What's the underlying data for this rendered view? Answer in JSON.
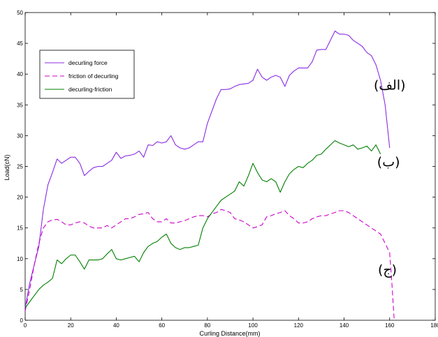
{
  "chart_data": {
    "type": "line",
    "xlabel": "Curling Distance(mm)",
    "ylabel": "Load(cN)",
    "xlim": [
      0,
      180
    ],
    "ylim": [
      0,
      50
    ],
    "xticks": [
      "0",
      "20",
      "40",
      "60",
      "80",
      "100",
      "120",
      "140",
      "160",
      "180"
    ],
    "yticks": [
      "0",
      "5",
      "10",
      "15",
      "20",
      "25",
      "30",
      "35",
      "40",
      "45",
      "50"
    ],
    "grid": false,
    "legend": "top-left",
    "series": [
      {
        "name": "decurling force",
        "color": "#8a2be2",
        "dash": "solid",
        "points": [
          [
            0,
            2
          ],
          [
            2,
            6
          ],
          [
            4,
            9
          ],
          [
            6,
            12
          ],
          [
            8,
            18
          ],
          [
            10,
            22
          ],
          [
            12,
            24
          ],
          [
            14,
            26.2
          ],
          [
            16,
            25.5
          ],
          [
            18,
            26
          ],
          [
            20,
            26.5
          ],
          [
            22,
            26.5
          ],
          [
            24,
            25.5
          ],
          [
            26,
            23.5
          ],
          [
            28,
            24.2
          ],
          [
            30,
            24.8
          ],
          [
            32,
            25
          ],
          [
            34,
            25
          ],
          [
            36,
            25.5
          ],
          [
            38,
            26
          ],
          [
            40,
            27.3
          ],
          [
            42,
            26.3
          ],
          [
            44,
            26.7
          ],
          [
            46,
            26.8
          ],
          [
            48,
            27
          ],
          [
            50,
            27.5
          ],
          [
            52,
            26.5
          ],
          [
            54,
            28.5
          ],
          [
            56,
            28.4
          ],
          [
            58,
            29
          ],
          [
            60,
            28.8
          ],
          [
            62,
            29
          ],
          [
            64,
            30
          ],
          [
            66,
            28.5
          ],
          [
            68,
            28
          ],
          [
            70,
            27.8
          ],
          [
            72,
            28
          ],
          [
            74,
            28.5
          ],
          [
            76,
            29
          ],
          [
            78,
            29
          ],
          [
            80,
            32
          ],
          [
            82,
            34
          ],
          [
            84,
            36
          ],
          [
            86,
            37.5
          ],
          [
            88,
            37.5
          ],
          [
            90,
            37.6
          ],
          [
            92,
            38
          ],
          [
            94,
            38.3
          ],
          [
            96,
            38.4
          ],
          [
            98,
            38.5
          ],
          [
            100,
            39
          ],
          [
            102,
            40.8
          ],
          [
            104,
            39.5
          ],
          [
            106,
            39
          ],
          [
            108,
            39.5
          ],
          [
            110,
            39.8
          ],
          [
            112,
            39.5
          ],
          [
            114,
            38
          ],
          [
            116,
            39.8
          ],
          [
            118,
            40.5
          ],
          [
            120,
            41
          ],
          [
            122,
            41
          ],
          [
            124,
            41
          ],
          [
            126,
            42
          ],
          [
            128,
            43.9
          ],
          [
            130,
            44
          ],
          [
            132,
            44
          ],
          [
            134,
            45.5
          ],
          [
            136,
            47
          ],
          [
            138,
            46.5
          ],
          [
            140,
            46.5
          ],
          [
            142,
            46.3
          ],
          [
            144,
            45.5
          ],
          [
            146,
            45
          ],
          [
            148,
            44.5
          ],
          [
            150,
            43.5
          ],
          [
            152,
            43
          ],
          [
            154,
            41.5
          ],
          [
            156,
            39
          ],
          [
            158,
            35
          ],
          [
            160,
            28
          ]
        ]
      },
      {
        "name": "friction of decurling",
        "color": "#cc00cc",
        "dash": "dashed",
        "points": [
          [
            0,
            1.5
          ],
          [
            2,
            5
          ],
          [
            4,
            9
          ],
          [
            6,
            12.5
          ],
          [
            8,
            15
          ],
          [
            10,
            16
          ],
          [
            12,
            16.3
          ],
          [
            14,
            16.4
          ],
          [
            16,
            16
          ],
          [
            18,
            15.5
          ],
          [
            20,
            15.5
          ],
          [
            22,
            15.8
          ],
          [
            24,
            16
          ],
          [
            26,
            15.8
          ],
          [
            28,
            15.3
          ],
          [
            30,
            15
          ],
          [
            32,
            15
          ],
          [
            34,
            15
          ],
          [
            36,
            15.4
          ],
          [
            38,
            15
          ],
          [
            40,
            15.5
          ],
          [
            42,
            16
          ],
          [
            44,
            16.5
          ],
          [
            46,
            16.5
          ],
          [
            48,
            16.8
          ],
          [
            50,
            17.2
          ],
          [
            52,
            17.3
          ],
          [
            54,
            17.5
          ],
          [
            56,
            16.5
          ],
          [
            58,
            16
          ],
          [
            60,
            16
          ],
          [
            62,
            16.5
          ],
          [
            64,
            15.8
          ],
          [
            66,
            15.8
          ],
          [
            68,
            16
          ],
          [
            70,
            16.2
          ],
          [
            72,
            16.5
          ],
          [
            74,
            16.8
          ],
          [
            76,
            17
          ],
          [
            78,
            17
          ],
          [
            80,
            16.8
          ],
          [
            82,
            17.3
          ],
          [
            84,
            17.5
          ],
          [
            86,
            18
          ],
          [
            88,
            17.8
          ],
          [
            90,
            17.5
          ],
          [
            92,
            16.5
          ],
          [
            94,
            16.3
          ],
          [
            96,
            16
          ],
          [
            98,
            15.5
          ],
          [
            100,
            15
          ],
          [
            102,
            15.2
          ],
          [
            104,
            15.5
          ],
          [
            106,
            16.8
          ],
          [
            108,
            17
          ],
          [
            110,
            17.3
          ],
          [
            112,
            17.5
          ],
          [
            114,
            17.8
          ],
          [
            116,
            17
          ],
          [
            118,
            16.5
          ],
          [
            120,
            15.8
          ],
          [
            122,
            15.8
          ],
          [
            124,
            16
          ],
          [
            126,
            16.5
          ],
          [
            128,
            16.8
          ],
          [
            130,
            17
          ],
          [
            132,
            17
          ],
          [
            134,
            17.3
          ],
          [
            136,
            17.5
          ],
          [
            138,
            17.8
          ],
          [
            140,
            17.8
          ],
          [
            142,
            17.5
          ],
          [
            144,
            17
          ],
          [
            146,
            16.5
          ],
          [
            148,
            16
          ],
          [
            150,
            15.5
          ],
          [
            152,
            15
          ],
          [
            154,
            14.5
          ],
          [
            156,
            14
          ],
          [
            158,
            12.5
          ],
          [
            160,
            11
          ],
          [
            161,
            6
          ],
          [
            162,
            0
          ]
        ]
      },
      {
        "name": "decurling-friction",
        "color": "#008000",
        "dash": "solid",
        "points": [
          [
            0,
            2
          ],
          [
            2,
            3
          ],
          [
            4,
            4
          ],
          [
            6,
            5
          ],
          [
            8,
            5.7
          ],
          [
            10,
            6.2
          ],
          [
            12,
            6.8
          ],
          [
            14,
            9.8
          ],
          [
            16,
            9.2
          ],
          [
            18,
            10
          ],
          [
            20,
            10.6
          ],
          [
            22,
            10.6
          ],
          [
            24,
            9.5
          ],
          [
            26,
            8.3
          ],
          [
            28,
            9.8
          ],
          [
            30,
            9.8
          ],
          [
            32,
            9.8
          ],
          [
            34,
            10
          ],
          [
            36,
            10.8
          ],
          [
            38,
            11.5
          ],
          [
            40,
            10
          ],
          [
            42,
            9.8
          ],
          [
            44,
            10
          ],
          [
            46,
            10.2
          ],
          [
            48,
            10.4
          ],
          [
            50,
            9.5
          ],
          [
            52,
            11
          ],
          [
            54,
            12
          ],
          [
            56,
            12.5
          ],
          [
            58,
            12.8
          ],
          [
            60,
            13.5
          ],
          [
            62,
            14
          ],
          [
            64,
            12.5
          ],
          [
            66,
            11.8
          ],
          [
            68,
            11.5
          ],
          [
            70,
            11.8
          ],
          [
            72,
            11.8
          ],
          [
            74,
            12
          ],
          [
            76,
            12.2
          ],
          [
            78,
            15
          ],
          [
            80,
            16.5
          ],
          [
            82,
            17.5
          ],
          [
            84,
            18.5
          ],
          [
            86,
            19.5
          ],
          [
            88,
            20
          ],
          [
            90,
            20.5
          ],
          [
            92,
            21
          ],
          [
            94,
            22.5
          ],
          [
            96,
            21.8
          ],
          [
            98,
            23.5
          ],
          [
            100,
            25.5
          ],
          [
            102,
            24
          ],
          [
            104,
            22.8
          ],
          [
            106,
            22.5
          ],
          [
            108,
            23
          ],
          [
            110,
            22.5
          ],
          [
            112,
            20.8
          ],
          [
            114,
            22.5
          ],
          [
            116,
            23.8
          ],
          [
            118,
            24.5
          ],
          [
            120,
            25
          ],
          [
            122,
            24.8
          ],
          [
            124,
            25.5
          ],
          [
            126,
            26
          ],
          [
            128,
            26.8
          ],
          [
            130,
            27
          ],
          [
            132,
            27.8
          ],
          [
            134,
            28.5
          ],
          [
            136,
            29.2
          ],
          [
            138,
            28.8
          ],
          [
            140,
            28.5
          ],
          [
            142,
            28.2
          ],
          [
            144,
            28.5
          ],
          [
            146,
            27.8
          ],
          [
            148,
            28
          ],
          [
            150,
            28.3
          ],
          [
            152,
            27.5
          ],
          [
            154,
            28.5
          ],
          [
            156,
            27
          ]
        ]
      }
    ],
    "annotations": [
      {
        "text": "(الف)",
        "x": 160,
        "y": 37.5
      },
      {
        "text": "(ب)",
        "x": 159.5,
        "y": 25
      },
      {
        "text": "(ج)",
        "x": 159,
        "y": 7.5
      }
    ]
  }
}
